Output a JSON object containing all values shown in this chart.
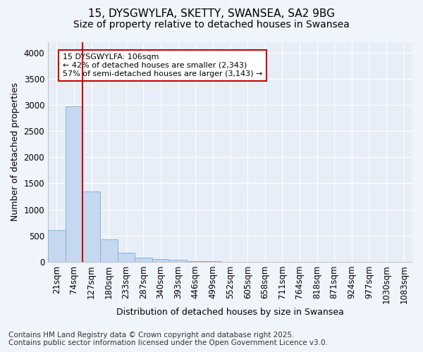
{
  "title_line1": "15, DYSGWYLFA, SKETTY, SWANSEA, SA2 9BG",
  "title_line2": "Size of property relative to detached houses in Swansea",
  "xlabel": "Distribution of detached houses by size in Swansea",
  "ylabel": "Number of detached properties",
  "categories": [
    "21sqm",
    "74sqm",
    "127sqm",
    "180sqm",
    "233sqm",
    "287sqm",
    "340sqm",
    "393sqm",
    "446sqm",
    "499sqm",
    "552sqm",
    "605sqm",
    "658sqm",
    "711sqm",
    "764sqm",
    "818sqm",
    "871sqm",
    "924sqm",
    "977sqm",
    "1030sqm",
    "1083sqm"
  ],
  "values": [
    600,
    2980,
    1340,
    430,
    175,
    85,
    55,
    35,
    10,
    5,
    0,
    0,
    0,
    0,
    0,
    0,
    0,
    0,
    0,
    0,
    0
  ],
  "bar_color": "#c5d8f0",
  "bar_edge_color": "#7aadd4",
  "vline_x": 1.5,
  "vline_color": "#cc0000",
  "annotation_box_text": "15 DYSGWYLFA: 106sqm\n← 42% of detached houses are smaller (2,343)\n57% of semi-detached houses are larger (3,143) →",
  "annotation_box_color": "#cc0000",
  "ylim": [
    0,
    4200
  ],
  "yticks": [
    0,
    500,
    1000,
    1500,
    2000,
    2500,
    3000,
    3500,
    4000
  ],
  "footer_line1": "Contains HM Land Registry data © Crown copyright and database right 2025.",
  "footer_line2": "Contains public sector information licensed under the Open Government Licence v3.0.",
  "bg_color": "#f0f4fb",
  "plot_bg_color": "#e8eef8",
  "title_fontsize": 11,
  "subtitle_fontsize": 10,
  "axis_label_fontsize": 9,
  "tick_fontsize": 8.5,
  "footer_fontsize": 7.5,
  "annotation_fontsize": 8
}
